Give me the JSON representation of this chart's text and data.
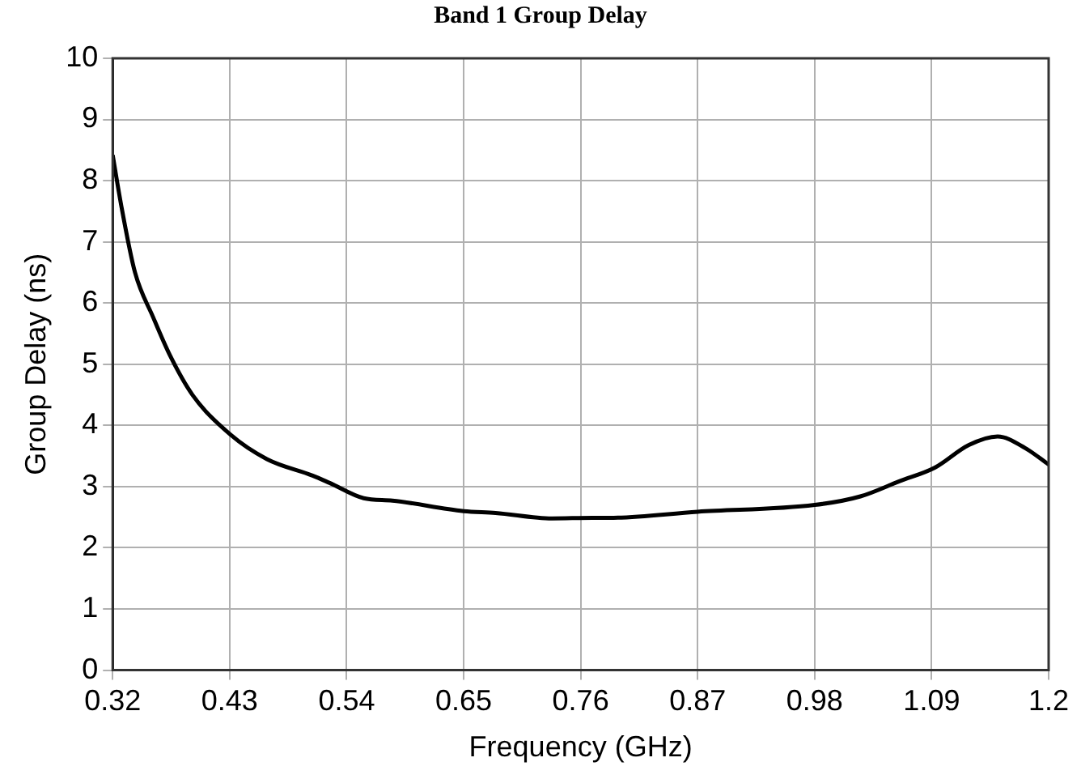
{
  "chart_data": {
    "type": "line",
    "title": "Band 1 Group Delay",
    "xlabel": "Frequency (GHz)",
    "ylabel": "Group Delay (ns)",
    "xlim": [
      0.32,
      1.2
    ],
    "xticks": [
      0.32,
      0.43,
      0.54,
      0.65,
      0.76,
      0.87,
      0.98,
      1.09,
      1.2
    ],
    "ylim": [
      0,
      10
    ],
    "yticks": [
      0,
      1,
      2,
      3,
      4,
      5,
      6,
      7,
      8,
      9,
      10
    ],
    "grid": true,
    "marker": "none",
    "line_style": "solid",
    "series": [
      {
        "color": "#000000",
        "x": [
          0.32,
          0.328,
          0.341,
          0.358,
          0.374,
          0.395,
          0.43,
          0.465,
          0.508,
          0.524,
          0.556,
          0.583,
          0.65,
          0.68,
          0.733,
          0.771,
          0.787,
          0.87,
          0.98,
          1.023,
          1.06,
          1.093,
          1.125,
          1.152,
          1.178,
          1.2
        ],
        "values": [
          8.42,
          7.6,
          6.5,
          5.77,
          5.14,
          4.5,
          3.86,
          3.45,
          3.18,
          3.06,
          2.81,
          2.77,
          2.6,
          2.57,
          2.48,
          2.49,
          2.49,
          2.59,
          2.7,
          2.84,
          3.09,
          3.31,
          3.68,
          3.82,
          3.63,
          3.36
        ]
      }
    ]
  }
}
